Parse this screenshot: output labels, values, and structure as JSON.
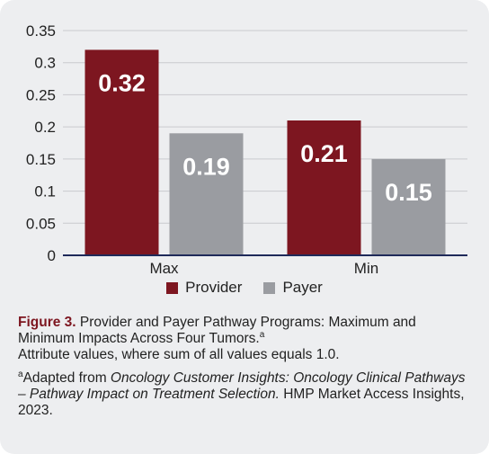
{
  "chart_data": {
    "type": "bar",
    "categories": [
      "Max",
      "Min"
    ],
    "series": [
      {
        "name": "Provider",
        "values": [
          0.32,
          0.21
        ],
        "color": "#7d1620"
      },
      {
        "name": "Payer",
        "values": [
          0.19,
          0.15
        ],
        "color": "#9a9ca1"
      }
    ],
    "data_labels": [
      [
        "0.32",
        "0.21"
      ],
      [
        "0.19",
        "0.15"
      ]
    ],
    "y_ticks": [
      "0",
      "0.05",
      "0.1",
      "0.15",
      "0.2",
      "0.25",
      "0.3",
      "0.35"
    ],
    "ylim": [
      0,
      0.35
    ],
    "grid": true,
    "legend_placement": "bottom-center",
    "title": "",
    "xlabel": "",
    "ylabel": ""
  },
  "caption": {
    "figure_label": "Figure 3.",
    "title_text": "Provider and Payer Pathway Programs: Maximum and Minimum Impacts Across Four Tumors.",
    "title_sup": "a",
    "subtitle": "Attribute values, where sum of all values equals 1.0.",
    "note_sup": "a",
    "note_prefix": "Adapted from ",
    "note_source": "Oncology Customer Insights: Oncology Clinical Pathways – Pathway Impact on Treatment Selection.",
    "note_suffix": " HMP Market Access Insights, 2023."
  }
}
